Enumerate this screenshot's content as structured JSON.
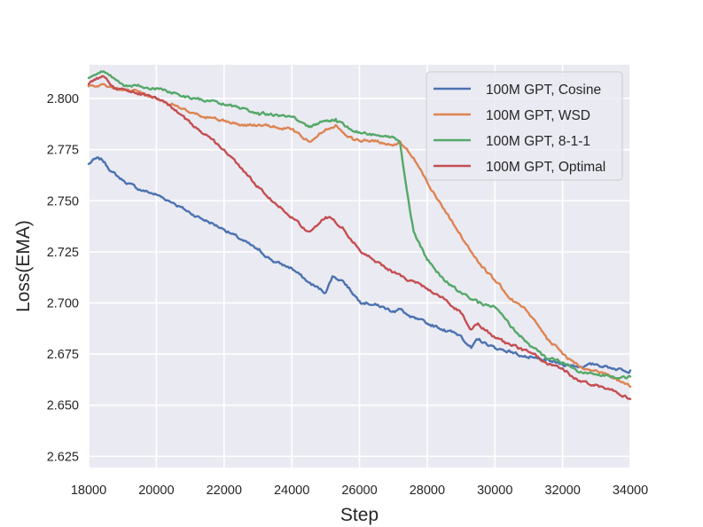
{
  "chart_data": {
    "type": "line",
    "title": "",
    "xlabel": "Step",
    "ylabel": "Loss(EMA)",
    "xlim": [
      18000,
      34000
    ],
    "ylim": [
      2.6195,
      2.8165
    ],
    "xticks": [
      18000,
      20000,
      22000,
      24000,
      26000,
      28000,
      30000,
      32000,
      34000
    ],
    "xtick_labels": [
      "18000",
      "20000",
      "22000",
      "24000",
      "26000",
      "28000",
      "30000",
      "32000",
      "34000"
    ],
    "yticks": [
      2.625,
      2.65,
      2.675,
      2.7,
      2.725,
      2.75,
      2.775,
      2.8
    ],
    "ytick_labels": [
      "2.625",
      "2.650",
      "2.675",
      "2.700",
      "2.725",
      "2.750",
      "2.775",
      "2.800"
    ],
    "grid": true,
    "legend_position": "top-right",
    "series": [
      {
        "name": "100M GPT, Cosine",
        "color": "#4c72b0",
        "x": [
          18000,
          18200,
          18400,
          18700,
          19000,
          19500,
          20000,
          20500,
          21000,
          21500,
          22000,
          22500,
          23000,
          23500,
          24000,
          24500,
          25000,
          25200,
          25500,
          26000,
          26500,
          27000,
          27200,
          27500,
          28000,
          28500,
          29000,
          29300,
          29500,
          30000,
          30500,
          31000,
          31500,
          32000,
          32500,
          33000,
          33500,
          34000
        ],
        "y": [
          2.768,
          2.7705,
          2.77,
          2.764,
          2.76,
          2.7555,
          2.753,
          2.749,
          2.744,
          2.74,
          2.736,
          2.731,
          2.726,
          2.72,
          2.717,
          2.71,
          2.705,
          2.713,
          2.711,
          2.701,
          2.699,
          2.696,
          2.697,
          2.693,
          2.69,
          2.687,
          2.684,
          2.678,
          2.682,
          2.678,
          2.676,
          2.673,
          2.672,
          2.67,
          2.669,
          2.67,
          2.668,
          2.667
        ]
      },
      {
        "name": "100M GPT, WSD",
        "color": "#dd8452",
        "x": [
          18000,
          18400,
          19000,
          19500,
          20000,
          20500,
          21000,
          21500,
          22000,
          22500,
          23000,
          23500,
          24000,
          24500,
          25000,
          25300,
          25800,
          26500,
          27000,
          27200,
          27600,
          28000,
          28500,
          29000,
          29500,
          30000,
          30500,
          31000,
          31500,
          32000,
          32500,
          33000,
          33500,
          34000
        ],
        "y": [
          2.806,
          2.807,
          2.804,
          2.8035,
          2.8,
          2.797,
          2.793,
          2.791,
          2.789,
          2.787,
          2.787,
          2.786,
          2.785,
          2.779,
          2.785,
          2.787,
          2.78,
          2.779,
          2.777,
          2.779,
          2.771,
          2.759,
          2.746,
          2.733,
          2.72,
          2.711,
          2.702,
          2.695,
          2.684,
          2.675,
          2.669,
          2.667,
          2.663,
          2.659
        ]
      },
      {
        "name": "100M GPT, 8-1-1",
        "color": "#55a868",
        "x": [
          18000,
          18400,
          19000,
          19500,
          20000,
          20500,
          21000,
          21500,
          22000,
          22500,
          23000,
          23500,
          24000,
          24500,
          25000,
          25300,
          25800,
          26500,
          27000,
          27200,
          27400,
          27600,
          28000,
          28500,
          29000,
          29500,
          30000,
          30500,
          31000,
          31500,
          32000,
          32500,
          33000,
          33500,
          34000
        ],
        "y": [
          2.81,
          2.813,
          2.807,
          2.806,
          2.805,
          2.803,
          2.8,
          2.799,
          2.797,
          2.795,
          2.793,
          2.792,
          2.791,
          2.786,
          2.789,
          2.79,
          2.784,
          2.782,
          2.781,
          2.778,
          2.755,
          2.735,
          2.721,
          2.711,
          2.705,
          2.7,
          2.698,
          2.688,
          2.68,
          2.673,
          2.671,
          2.666,
          2.665,
          2.664,
          2.664
        ]
      },
      {
        "name": "100M GPT, Optimal",
        "color": "#c44e52",
        "x": [
          18000,
          18400,
          18800,
          19500,
          20000,
          20500,
          21000,
          21500,
          22000,
          22500,
          23000,
          23500,
          24000,
          24500,
          25000,
          25200,
          25500,
          26000,
          26500,
          27000,
          27500,
          28000,
          28500,
          29000,
          29300,
          29500,
          30000,
          30500,
          31000,
          31500,
          32000,
          32500,
          33000,
          33500,
          34000
        ],
        "y": [
          2.807,
          2.811,
          2.805,
          2.8025,
          2.8,
          2.795,
          2.788,
          2.782,
          2.775,
          2.766,
          2.757,
          2.749,
          2.742,
          2.735,
          2.742,
          2.741,
          2.737,
          2.726,
          2.72,
          2.715,
          2.711,
          2.707,
          2.702,
          2.695,
          2.687,
          2.69,
          2.683,
          2.679,
          2.676,
          2.671,
          2.668,
          2.662,
          2.66,
          2.657,
          2.653
        ]
      }
    ]
  }
}
